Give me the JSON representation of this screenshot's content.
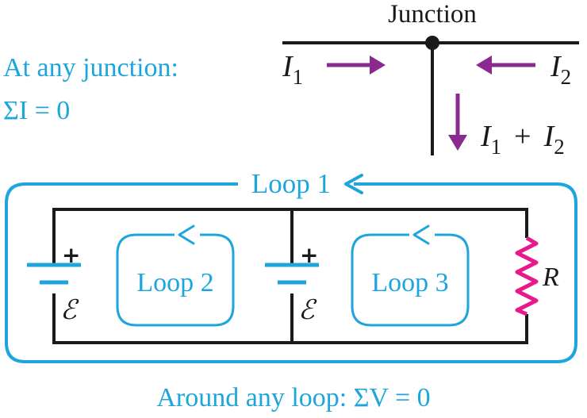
{
  "colors": {
    "wire": "#1a1a1a",
    "loop": "#1ea6dc",
    "arrow": "#8b2a8e",
    "resistor": "#e8198b"
  },
  "junction": {
    "title": "Junction",
    "rule_line1": "At any junction:",
    "rule_line2": "ΣI = 0",
    "current_1": {
      "symbol": "I",
      "subscript": "1"
    },
    "current_2": {
      "symbol": "I",
      "subscript": "2"
    },
    "current_sum": {
      "sym_a": "I",
      "sub_a": "1",
      "op": "+",
      "sym_b": "I",
      "sub_b": "2"
    }
  },
  "circuit": {
    "loop_outer_label": "Loop 1",
    "loop_left_label": "Loop 2",
    "loop_right_label": "Loop 3",
    "battery_plus": "+",
    "emf_symbol": "ℰ",
    "resistor_label": "R",
    "rule_bottom": "Around any loop: ΣV = 0"
  }
}
